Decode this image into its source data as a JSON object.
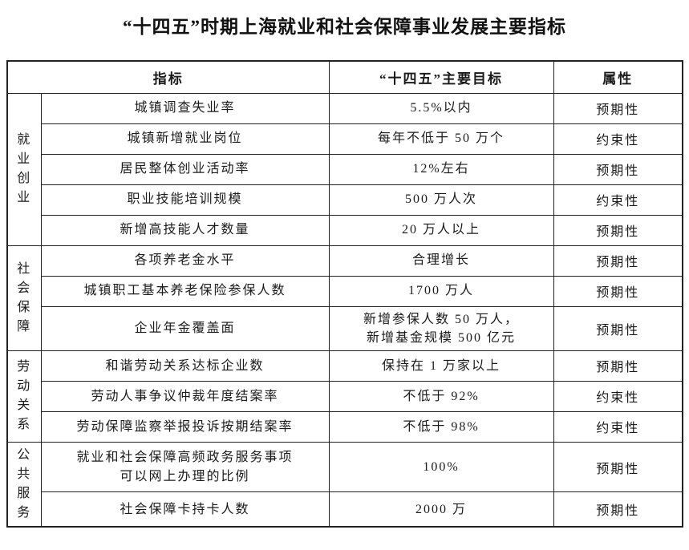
{
  "page": {
    "title": "“十四五”时期上海就业和社会保障事业发展主要指标"
  },
  "colors": {
    "background": "#ffffff",
    "text": "#1a1a1a",
    "grid_line": "#222222"
  },
  "table": {
    "headers": [
      "指标",
      "“十四五”主要目标",
      "属性"
    ],
    "groups": [
      {
        "category": "就业创业",
        "rows": [
          {
            "indicator": "城镇调查失业率",
            "target": "5.5%以内",
            "attribute": "预期性"
          },
          {
            "indicator": "城镇新增就业岗位",
            "target": "每年不低于 50 万个",
            "attribute": "约束性"
          },
          {
            "indicator": "居民整体创业活动率",
            "target": "12%左右",
            "attribute": "预期性"
          },
          {
            "indicator": "职业技能培训规模",
            "target": "500 万人次",
            "attribute": "约束性"
          },
          {
            "indicator": "新增高技能人才数量",
            "target": "20 万人以上",
            "attribute": "预期性"
          }
        ]
      },
      {
        "category": "社会保障",
        "rows": [
          {
            "indicator": "各项养老金水平",
            "target": "合理增长",
            "attribute": "预期性"
          },
          {
            "indicator": "城镇职工基本养老保险参保人数",
            "target": "1700 万人",
            "attribute": "预期性"
          },
          {
            "indicator": "企业年金覆盖面",
            "target": "新增参保人数 50 万人，\n新增基金规模 500 亿元",
            "attribute": "预期性"
          }
        ]
      },
      {
        "category": "劳动关系",
        "rows": [
          {
            "indicator": "和谐劳动关系达标企业数",
            "target": "保持在 1 万家以上",
            "attribute": "预期性"
          },
          {
            "indicator": "劳动人事争议仲裁年度结案率",
            "target": "不低于 92%",
            "attribute": "约束性"
          },
          {
            "indicator": "劳动保障监察举报投诉按期结案率",
            "target": "不低于 98%",
            "attribute": "约束性"
          }
        ]
      },
      {
        "category": "公共服务",
        "rows": [
          {
            "indicator": "就业和社会保障高频政务服务事项\n可以网上办理的比例",
            "target": "100%",
            "attribute": "预期性"
          },
          {
            "indicator": "社会保障卡持卡人数",
            "target": "2000 万",
            "attribute": "预期性"
          }
        ]
      }
    ]
  }
}
